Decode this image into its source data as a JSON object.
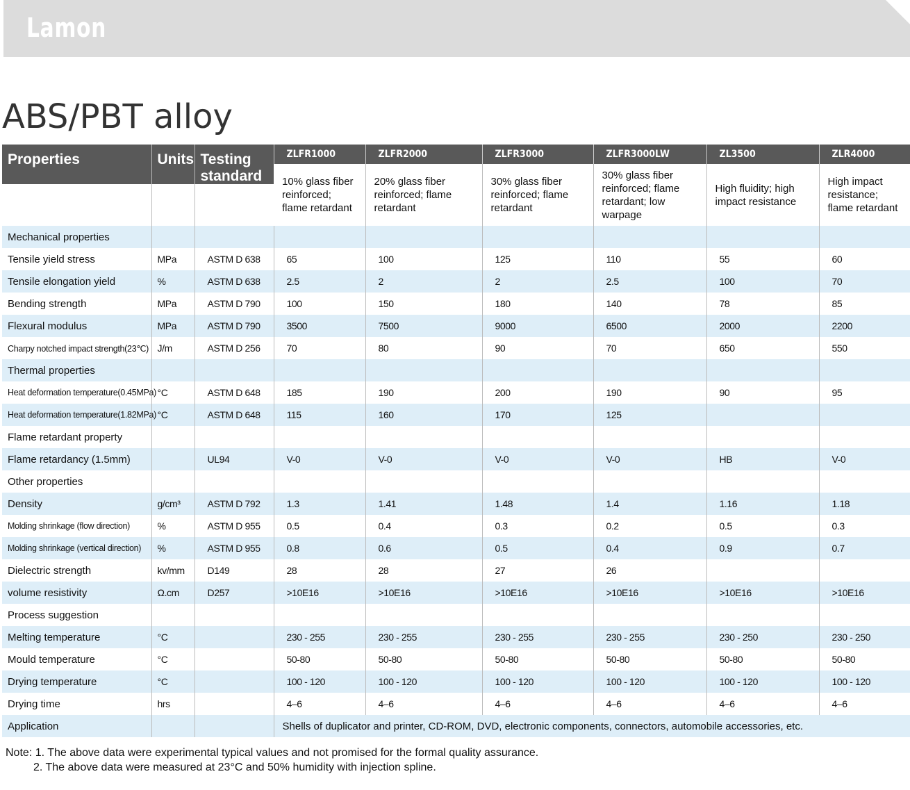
{
  "header": {
    "brand": "Lamon"
  },
  "title": "ABS/PBT alloy",
  "table": {
    "columns": [
      "Properties",
      "Units",
      "Testing standard"
    ],
    "grades": [
      {
        "name": "ZLFR1000",
        "description": "10% glass fiber reinforced; flame retardant"
      },
      {
        "name": "ZLFR2000",
        "description": "20% glass fiber reinforced; flame retardant"
      },
      {
        "name": "ZLFR3000",
        "description": "30% glass fiber reinforced; flame retardant"
      },
      {
        "name": "ZLFR3000LW",
        "description": "30% glass fiber reinforced; flame retardant; low warpage"
      },
      {
        "name": "ZL3500",
        "description": "High fluidity; high impact resistance"
      },
      {
        "name": "ZLR4000",
        "description": "High impact resistance; flame retardant"
      }
    ],
    "rows": [
      {
        "section": "Mechanical properties"
      },
      {
        "property": "Tensile yield stress",
        "unit": "MPa",
        "standard": "ASTM D 638",
        "values": [
          "65",
          "100",
          "125",
          "110",
          "55",
          "60"
        ]
      },
      {
        "property": "Tensile elongation yield",
        "unit": "%",
        "standard": "ASTM D 638",
        "values": [
          "2.5",
          "2",
          "2",
          "2.5",
          "100",
          "70"
        ]
      },
      {
        "property": "Bending strength",
        "unit": "MPa",
        "standard": "ASTM D 790",
        "values": [
          "100",
          "150",
          "180",
          "140",
          "78",
          "85"
        ]
      },
      {
        "property": "Flexural modulus",
        "unit": "MPa",
        "standard": "ASTM D 790",
        "values": [
          "3500",
          "7500",
          "9000",
          "6500",
          "2000",
          "2200"
        ]
      },
      {
        "property": "Charpy notched impact strength(23℃)",
        "unit": "J/m",
        "standard": "ASTM D 256",
        "values": [
          "70",
          "80",
          "90",
          "70",
          "650",
          "550"
        ]
      },
      {
        "section": "Thermal properties"
      },
      {
        "property": "Heat deformation temperature(0.45MPa)",
        "unit": "°C",
        "standard": "ASTM D 648",
        "values": [
          "185",
          "190",
          "200",
          "190",
          "90",
          "95"
        ]
      },
      {
        "property": "Heat deformation temperature(1.82MPa)",
        "unit": "°C",
        "standard": "ASTM D 648",
        "values": [
          "115",
          "160",
          "170",
          "125",
          null,
          null
        ]
      },
      {
        "section": "Flame retardant property"
      },
      {
        "property": "Flame retardancy (1.5mm)",
        "standard": "UL94",
        "values": [
          "V-0",
          "V-0",
          "V-0",
          "V-0",
          "HB",
          "V-0"
        ]
      },
      {
        "section": "Other properties"
      },
      {
        "property": "Density",
        "unit": "g/cm³",
        "standard": "ASTM D 792",
        "values": [
          "1.3",
          "1.41",
          "1.48",
          "1.4",
          "1.16",
          "1.18"
        ]
      },
      {
        "property": "Molding shrinkage (flow direction)",
        "unit": "%",
        "standard": "ASTM D 955",
        "values": [
          "0.5",
          "0.4",
          "0.3",
          "0.2",
          "0.5",
          "0.3"
        ]
      },
      {
        "property": "Molding shrinkage (vertical direction)",
        "unit": "%",
        "standard": "ASTM D 955",
        "values": [
          "0.8",
          "0.6",
          "0.5",
          "0.4",
          "0.9",
          "0.7"
        ]
      },
      {
        "property": "Dielectric strength",
        "unit": "kv/mm",
        "standard": "D149",
        "values": [
          "28",
          "28",
          "27",
          "26",
          null,
          null
        ]
      },
      {
        "property": "volume resistivity",
        "unit": "Ω.cm",
        "standard": "D257",
        "values": [
          ">10E16",
          ">10E16",
          ">10E16",
          ">10E16",
          ">10E16",
          ">10E16"
        ]
      },
      {
        "section": "Process suggestion"
      },
      {
        "property": "Melting temperature",
        "unit": "°C",
        "values": [
          "230 - 255",
          "230 - 255",
          "230 - 255",
          "230 - 255",
          "230 - 250",
          "230 - 250"
        ]
      },
      {
        "property": "Mould temperature",
        "unit": "°C",
        "values": [
          "50-80",
          "50-80",
          "50-80",
          "50-80",
          "50-80",
          "50-80"
        ]
      },
      {
        "property": "Drying temperature",
        "unit": "°C",
        "values": [
          "100 - 120",
          "100 - 120",
          "100 - 120",
          "100 - 120",
          "100 - 120",
          "100 - 120"
        ]
      },
      {
        "property": "Drying time",
        "unit": "hrs",
        "values": [
          "4–6",
          "4–6",
          "4–6",
          "4–6",
          "4–6",
          "4–6"
        ]
      }
    ],
    "application": {
      "label": "Application",
      "text": "Shells of duplicator and printer, CD-ROM, DVD, electronic components, connectors, automobile accessories, etc."
    }
  },
  "notes": [
    "Note: 1. The above data were experimental typical values and not promised for the formal quality assurance.",
    "2. The above data were measured at 23°C and 50% humidity with injection spline."
  ]
}
